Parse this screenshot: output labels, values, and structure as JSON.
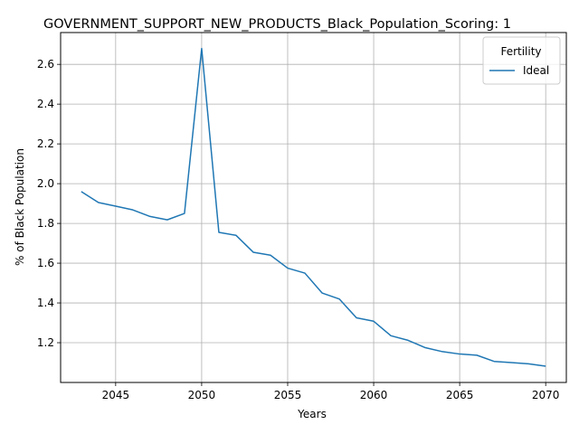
{
  "chart_data": {
    "type": "line",
    "title": "GOVERNMENT_SUPPORT_NEW_PRODUCTS_Black_Population_Scoring: 1",
    "xlabel": "Years",
    "ylabel": "% of Black Population",
    "xlim": [
      2041.8,
      2071.2
    ],
    "ylim": [
      1.0,
      2.76
    ],
    "xticks": [
      2045,
      2050,
      2055,
      2060,
      2065,
      2070
    ],
    "yticks": [
      1.2,
      1.4,
      1.6,
      1.8,
      2.0,
      2.2,
      2.4,
      2.6
    ],
    "grid": true,
    "legend": {
      "title": "Fertility",
      "placement": "top-right"
    },
    "series": [
      {
        "name": "Ideal",
        "color": "#1f77b4",
        "x": [
          2043,
          2044,
          2045,
          2046,
          2047,
          2048,
          2049,
          2050,
          2051,
          2052,
          2053,
          2054,
          2055,
          2056,
          2057,
          2058,
          2059,
          2060,
          2061,
          2062,
          2063,
          2064,
          2065,
          2066,
          2067,
          2068,
          2069,
          2070
        ],
        "y": [
          1.96,
          1.905,
          1.887,
          1.868,
          1.835,
          1.818,
          1.85,
          2.68,
          1.755,
          1.74,
          1.655,
          1.64,
          1.575,
          1.55,
          1.45,
          1.42,
          1.325,
          1.308,
          1.235,
          1.212,
          1.175,
          1.155,
          1.143,
          1.137,
          1.106,
          1.1,
          1.094,
          1.082
        ]
      }
    ]
  }
}
